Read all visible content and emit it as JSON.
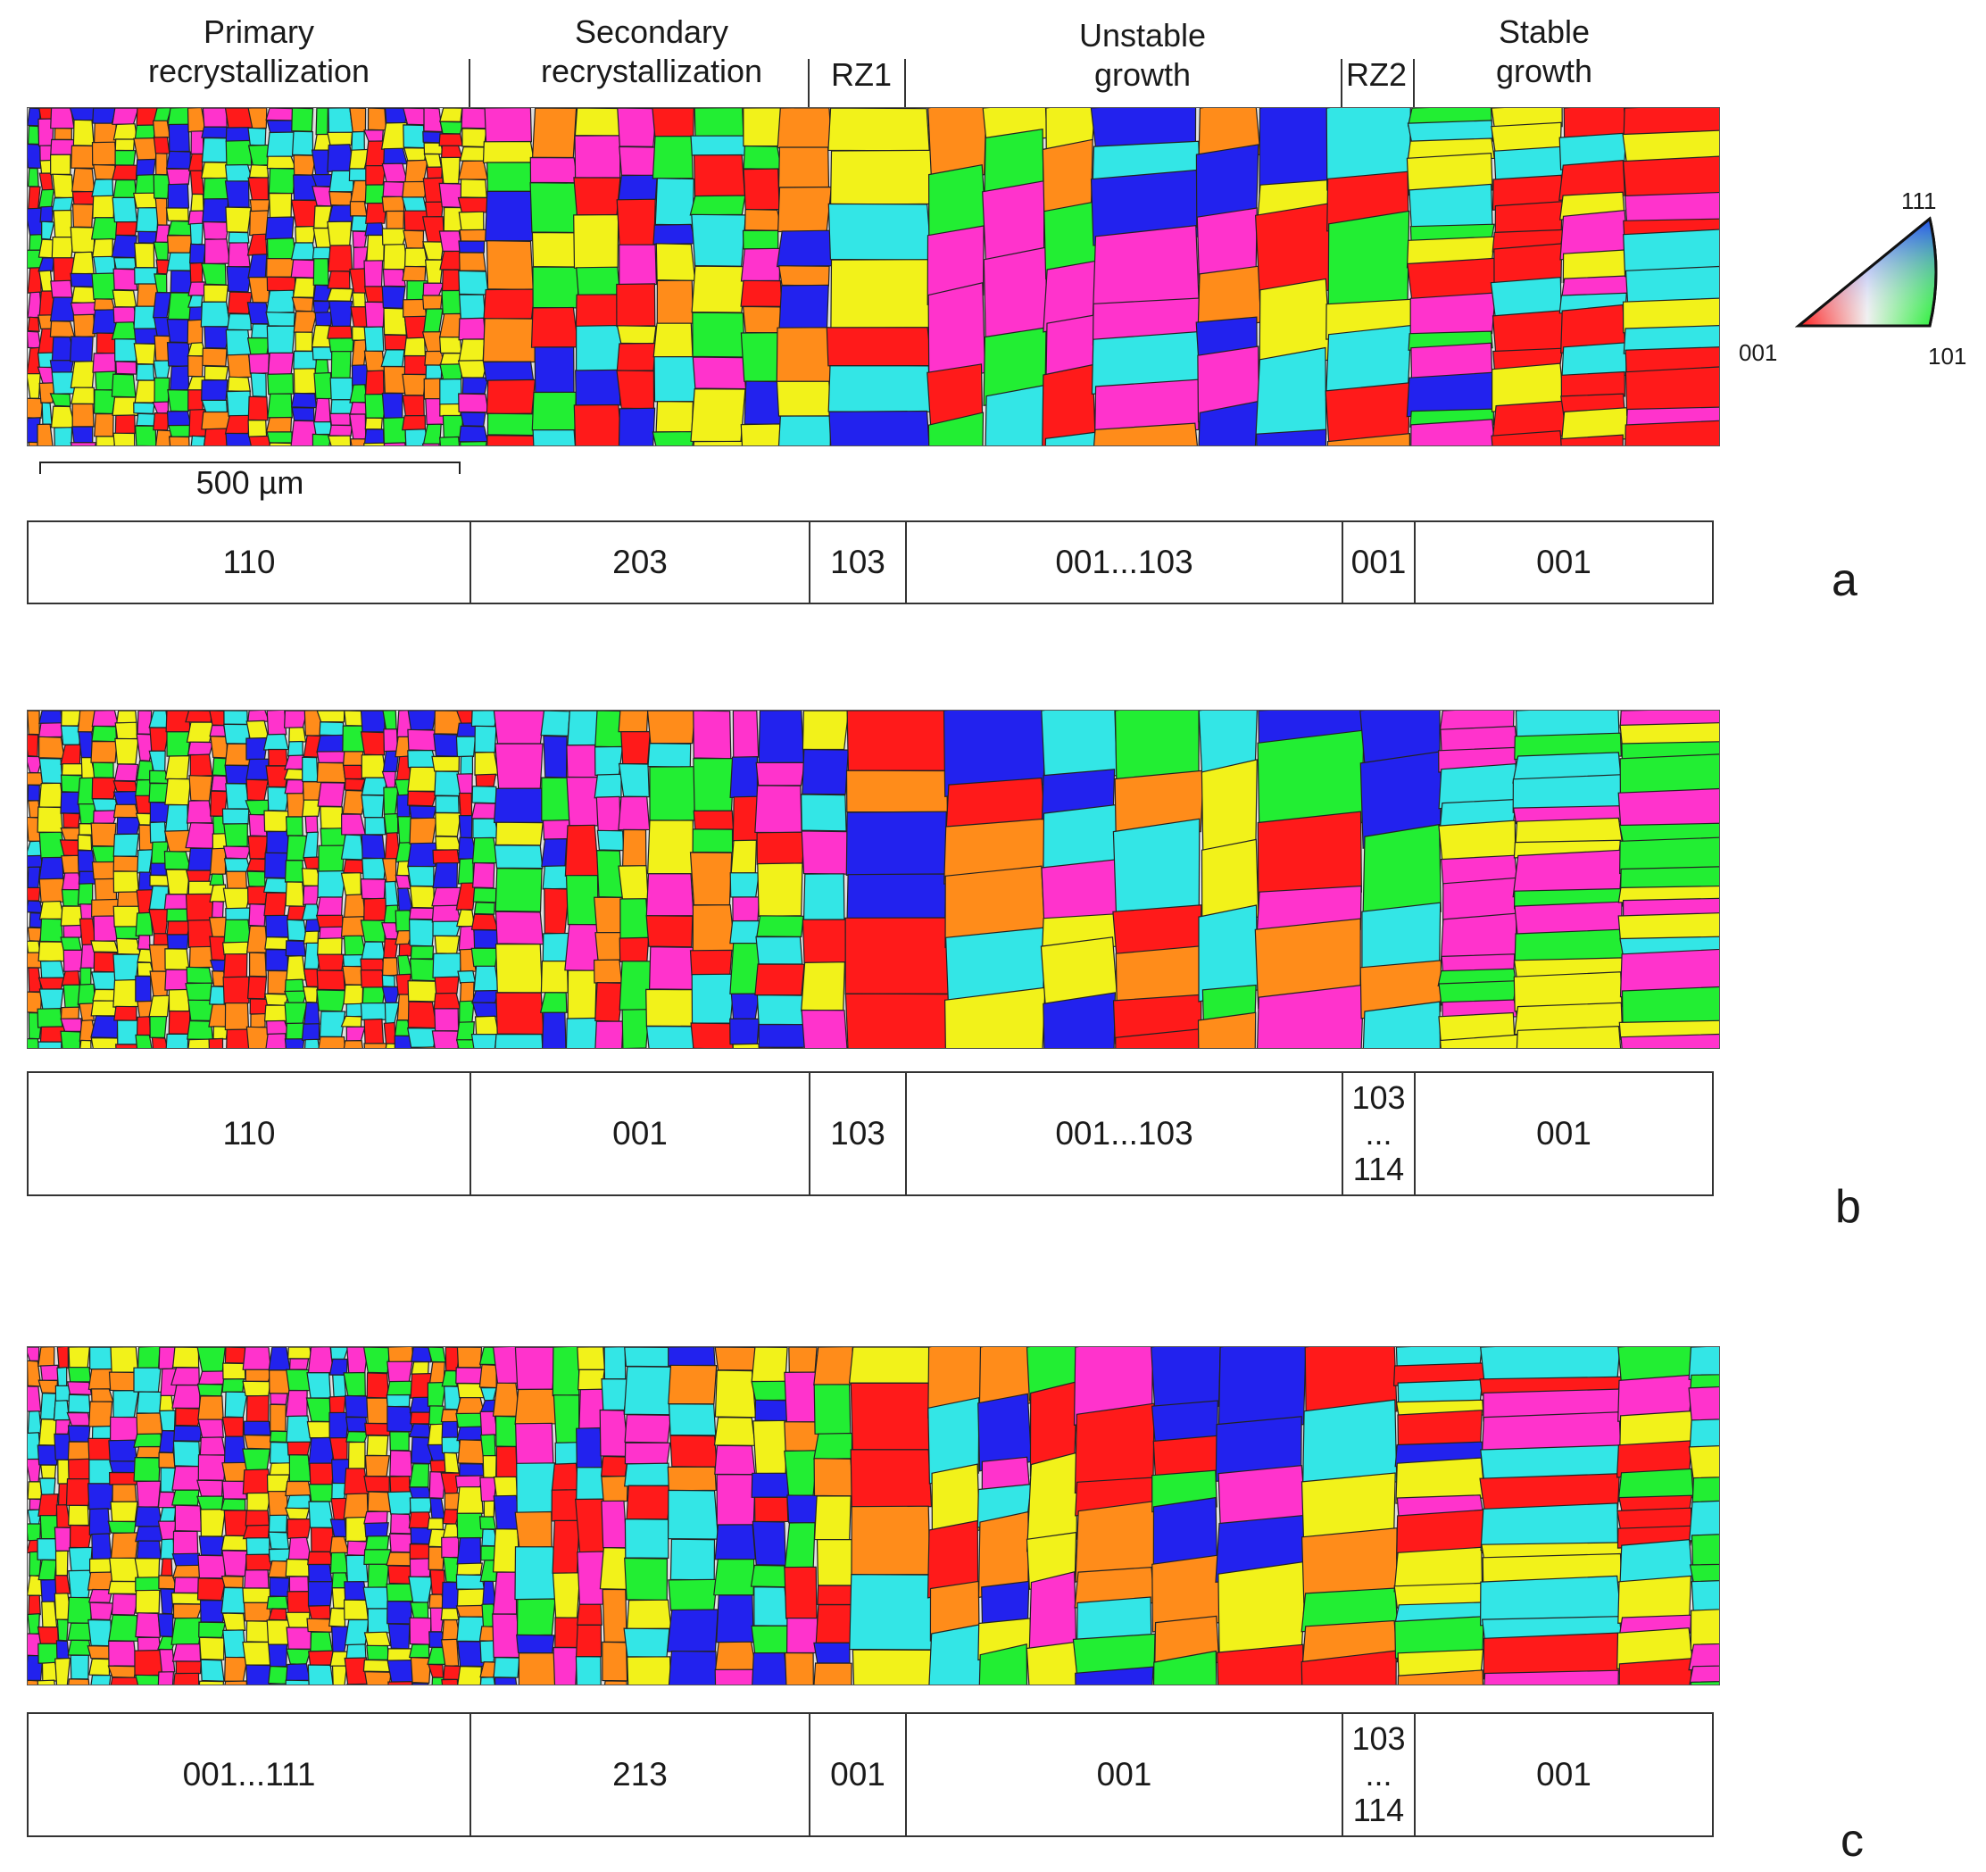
{
  "zones": [
    {
      "key": "primary",
      "lines": [
        "Primary",
        "recrystallization"
      ]
    },
    {
      "key": "secondary",
      "lines": [
        "Secondary",
        "recrystallization"
      ]
    },
    {
      "key": "rz1",
      "lines": [
        "RZ1"
      ]
    },
    {
      "key": "unstable",
      "lines": [
        "Unstable",
        "growth"
      ]
    },
    {
      "key": "rz2",
      "lines": [
        "RZ2"
      ]
    },
    {
      "key": "stable",
      "lines": [
        "Stable",
        "growth"
      ]
    }
  ],
  "scale_bar": {
    "label": "500 µm"
  },
  "legend_triangle": {
    "corner_001": "001",
    "corner_101": "101",
    "corner_111": "111"
  },
  "panels": [
    {
      "letter": "a",
      "cells": [
        "110",
        "203",
        "103",
        "001...103",
        "001",
        "001"
      ]
    },
    {
      "letter": "b",
      "cells": [
        "110",
        "001",
        "103",
        "001...103",
        {
          "top": "103",
          "mid": "...",
          "bot": "114"
        },
        "001"
      ]
    },
    {
      "letter": "c",
      "cells": [
        "001...111",
        "213",
        "001",
        "001",
        {
          "top": "103",
          "mid": "...",
          "bot": "114"
        },
        "001"
      ]
    }
  ],
  "colors": {
    "red_001": "#ff1a1a",
    "green_101": "#22ee33",
    "blue_111": "#2222ee",
    "magenta": "#ff33cc",
    "yellow": "#f2f21a",
    "cyan": "#33e6e6",
    "orange": "#ff8c1a"
  }
}
